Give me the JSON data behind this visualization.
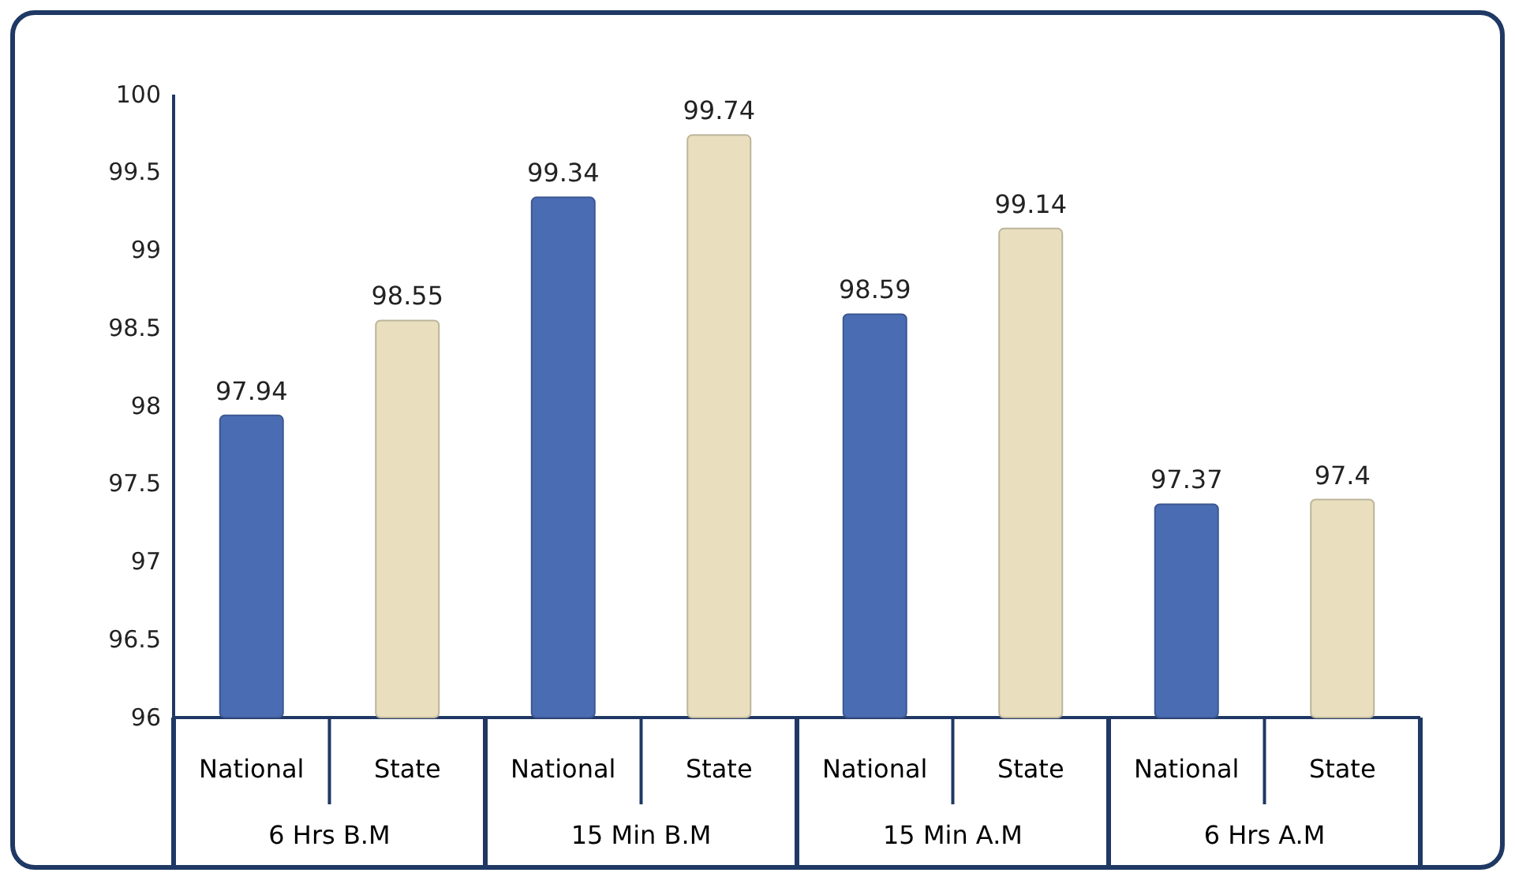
{
  "chart_data": {
    "type": "bar",
    "categories": [
      "6 Hrs B.M",
      "15 Min B.M",
      "15 Min A.M",
      "6 Hrs A.M"
    ],
    "series": [
      {
        "name": "National",
        "color": "#4a6cb3",
        "values": [
          97.94,
          99.34,
          98.59,
          97.37
        ]
      },
      {
        "name": "State",
        "color": "#e9dfbf",
        "values": [
          98.55,
          99.74,
          99.14,
          97.4
        ]
      }
    ],
    "ylim": [
      96,
      100
    ],
    "yticks": [
      96,
      96.5,
      97,
      97.5,
      98,
      98.5,
      99,
      99.5,
      100
    ],
    "data_labels": true
  }
}
